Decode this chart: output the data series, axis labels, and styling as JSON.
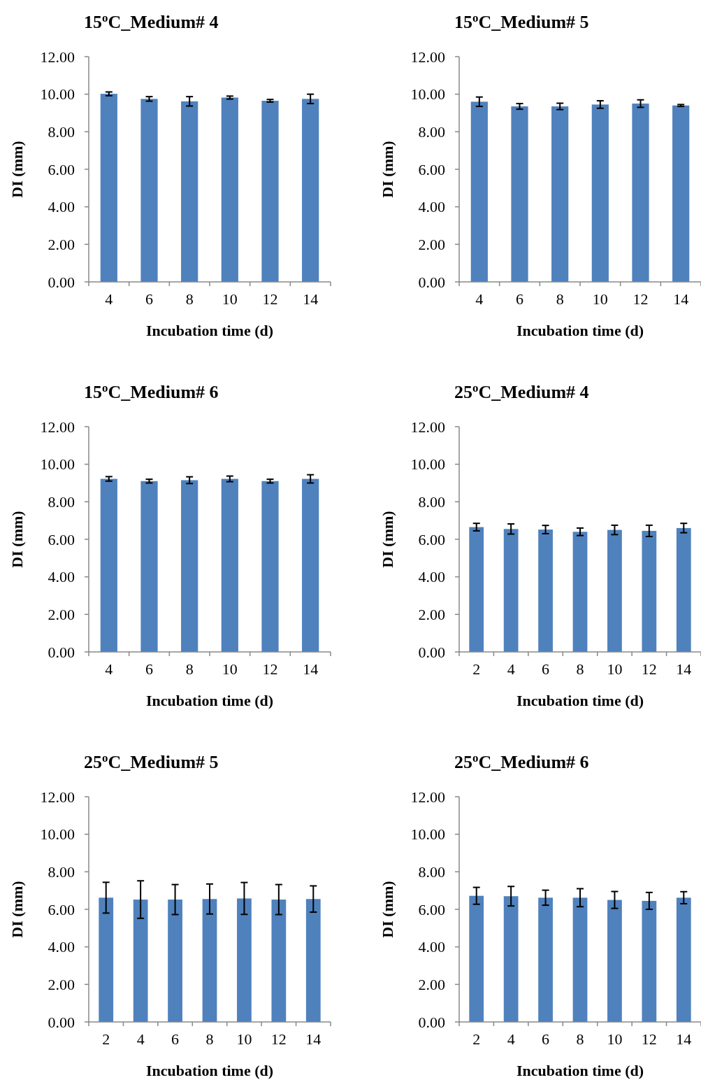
{
  "chart_data": [
    {
      "type": "bar",
      "title": "15$^{o}$C_Medium# 4",
      "xlabel": "Incubation time (d)",
      "ylabel": "DI (mm)",
      "categories": [
        "4",
        "6",
        "8",
        "10",
        "12",
        "14"
      ],
      "values": [
        10.02,
        9.75,
        9.62,
        9.82,
        9.65,
        9.75
      ],
      "errors": [
        0.1,
        0.12,
        0.25,
        0.08,
        0.07,
        0.25
      ],
      "color": "#4f81bd",
      "ylim": [
        0,
        12
      ],
      "yticks": [
        {
          "value": 0,
          "label": "0.00"
        },
        {
          "value": 2,
          "label": "2.00"
        },
        {
          "value": 4,
          "label": "4.00"
        },
        {
          "value": 6,
          "label": "6.00"
        },
        {
          "value": 8,
          "label": "8.00"
        },
        {
          "value": 10,
          "label": "10.00"
        },
        {
          "value": 12,
          "label": "12.00"
        }
      ]
    },
    {
      "type": "bar",
      "title": "15$^{o}$C_Medium# 5",
      "xlabel": "Incubation time (d)",
      "ylabel": "DI (mm)",
      "categories": [
        "4",
        "6",
        "8",
        "10",
        "12",
        "14"
      ],
      "values": [
        9.6,
        9.35,
        9.35,
        9.45,
        9.5,
        9.4
      ],
      "errors": [
        0.25,
        0.15,
        0.17,
        0.2,
        0.2,
        0.05
      ],
      "color": "#4f81bd",
      "ylim": [
        0,
        12
      ],
      "yticks": [
        {
          "value": 0,
          "label": "0.00"
        },
        {
          "value": 2,
          "label": "2.00"
        },
        {
          "value": 4,
          "label": "4.00"
        },
        {
          "value": 6,
          "label": "6.00"
        },
        {
          "value": 8,
          "label": "8.00"
        },
        {
          "value": 10,
          "label": "10.00"
        },
        {
          "value": 12,
          "label": "12.00"
        }
      ]
    },
    {
      "type": "bar",
      "title": "15$^{o}$C_Medium# 6",
      "xlabel": "Incubation time (d)",
      "ylabel": "DI (mm)",
      "categories": [
        "4",
        "6",
        "8",
        "10",
        "12",
        "14"
      ],
      "values": [
        9.22,
        9.1,
        9.15,
        9.22,
        9.1,
        9.22
      ],
      "errors": [
        0.12,
        0.1,
        0.18,
        0.15,
        0.1,
        0.22
      ],
      "color": "#4f81bd",
      "ylim": [
        0,
        12
      ],
      "yticks": [
        {
          "value": 0,
          "label": "0.00"
        },
        {
          "value": 2,
          "label": "2.00"
        },
        {
          "value": 4,
          "label": "4.00"
        },
        {
          "value": 6,
          "label": "6.00"
        },
        {
          "value": 8,
          "label": "8.00"
        },
        {
          "value": 10,
          "label": "10.00"
        },
        {
          "value": 12,
          "label": "12.00"
        }
      ]
    },
    {
      "type": "bar",
      "title": "25$^{o}$C_Medium# 4",
      "xlabel": "Incubation time (d)",
      "ylabel": "DI (mm)",
      "categories": [
        "2",
        "4",
        "6",
        "8",
        "10",
        "12",
        "14"
      ],
      "values": [
        6.65,
        6.55,
        6.52,
        6.4,
        6.5,
        6.45,
        6.6
      ],
      "errors": [
        0.2,
        0.27,
        0.22,
        0.2,
        0.25,
        0.3,
        0.25
      ],
      "color": "#4f81bd",
      "ylim": [
        0,
        12
      ],
      "yticks": [
        {
          "value": 0,
          "label": "0.00"
        },
        {
          "value": 2,
          "label": "2.00"
        },
        {
          "value": 4,
          "label": "4.00"
        },
        {
          "value": 6,
          "label": "6.00"
        },
        {
          "value": 8,
          "label": "8.00"
        },
        {
          "value": 10,
          "label": "10.00"
        },
        {
          "value": 12,
          "label": "12.00"
        }
      ]
    },
    {
      "type": "bar",
      "title": "25$^{o}$C_Medium# 5",
      "xlabel": "Incubation time (d)",
      "ylabel": "DI (mm)",
      "categories": [
        "2",
        "4",
        "6",
        "8",
        "10",
        "12",
        "14"
      ],
      "values": [
        6.62,
        6.52,
        6.52,
        6.55,
        6.58,
        6.52,
        6.55
      ],
      "errors": [
        0.82,
        1.0,
        0.8,
        0.8,
        0.85,
        0.8,
        0.7
      ],
      "color": "#4f81bd",
      "ylim": [
        0,
        12
      ],
      "yticks": [
        {
          "value": 0,
          "label": "0.00"
        },
        {
          "value": 2,
          "label": "2.00"
        },
        {
          "value": 4,
          "label": "4.00"
        },
        {
          "value": 6,
          "label": "6.00"
        },
        {
          "value": 8,
          "label": "8.00"
        },
        {
          "value": 10,
          "label": "10.00"
        },
        {
          "value": 12,
          "label": "12.00"
        }
      ]
    },
    {
      "type": "bar",
      "title": "25$^{o}$C_Medium# 6",
      "xlabel": "Incubation time (d)",
      "ylabel": "DI (mm)",
      "categories": [
        "2",
        "4",
        "6",
        "8",
        "10",
        "12",
        "14"
      ],
      "values": [
        6.72,
        6.7,
        6.62,
        6.62,
        6.5,
        6.45,
        6.62
      ],
      "errors": [
        0.45,
        0.52,
        0.4,
        0.48,
        0.45,
        0.45,
        0.32
      ],
      "color": "#4f81bd",
      "ylim": [
        0,
        12
      ],
      "yticks": [
        {
          "value": 0,
          "label": "0.00"
        },
        {
          "value": 2,
          "label": "2.00"
        },
        {
          "value": 4,
          "label": "4.00"
        },
        {
          "value": 6,
          "label": "6.00"
        },
        {
          "value": 8,
          "label": "8.00"
        },
        {
          "value": 10,
          "label": "10.00"
        },
        {
          "value": 12,
          "label": "12.00"
        }
      ]
    }
  ]
}
